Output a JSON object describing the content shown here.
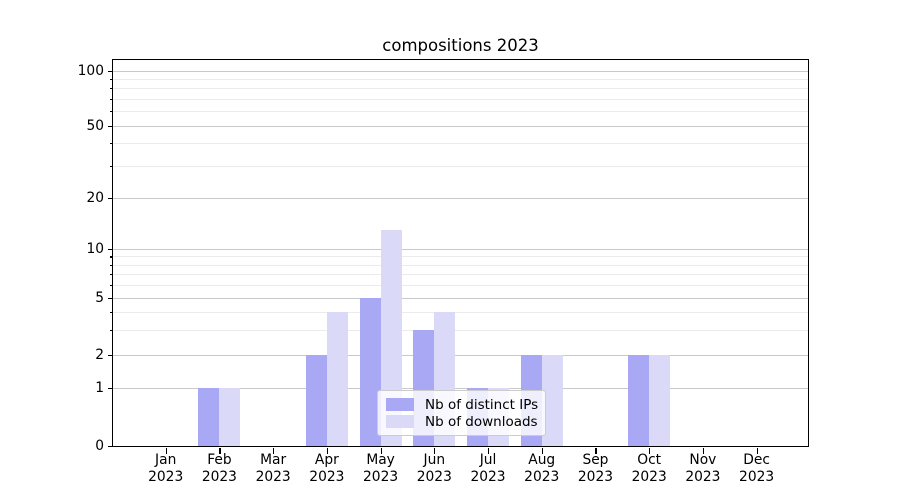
{
  "title": "compositions 2023",
  "chart_data": {
    "type": "bar",
    "title": "compositions 2023",
    "categories": [
      "Jan\n2023",
      "Feb\n2023",
      "Mar\n2023",
      "Apr\n2023",
      "May\n2023",
      "Jun\n2023",
      "Jul\n2023",
      "Aug\n2023",
      "Sep\n2023",
      "Oct\n2023",
      "Nov\n2023",
      "Dec\n2023"
    ],
    "series": [
      {
        "name": "Nb of distinct IPs",
        "color": "#a8a8f5",
        "values": [
          0,
          1,
          0,
          2,
          5,
          3,
          1,
          2,
          0,
          2,
          0,
          0
        ]
      },
      {
        "name": "Nb of downloads",
        "color": "#dadaf8",
        "values": [
          0,
          1,
          0,
          4,
          13,
          4,
          1,
          2,
          0,
          2,
          0,
          0
        ]
      }
    ],
    "xlabel": "",
    "ylabel": "",
    "y_axis": {
      "scale": "symlog",
      "major_ticks": [
        0,
        1,
        2,
        5,
        10,
        20,
        50,
        100
      ],
      "minor_ticks": [
        3,
        4,
        6,
        7,
        8,
        9,
        30,
        40,
        60,
        70,
        80,
        90
      ],
      "ylim": [
        0,
        115
      ]
    },
    "grid": "horizontal",
    "legend_position": "lower center inside"
  },
  "legend": {
    "items": [
      {
        "label": "Nb of distinct IPs",
        "swatch_color": "#a8a8f5"
      },
      {
        "label": "Nb of downloads",
        "swatch_color": "#dadaf8"
      }
    ]
  },
  "colors": {
    "grid_major": "#c9c9c9",
    "grid_minor": "#ebebeb",
    "spine": "#000000",
    "legend_border": "#cccccc"
  }
}
